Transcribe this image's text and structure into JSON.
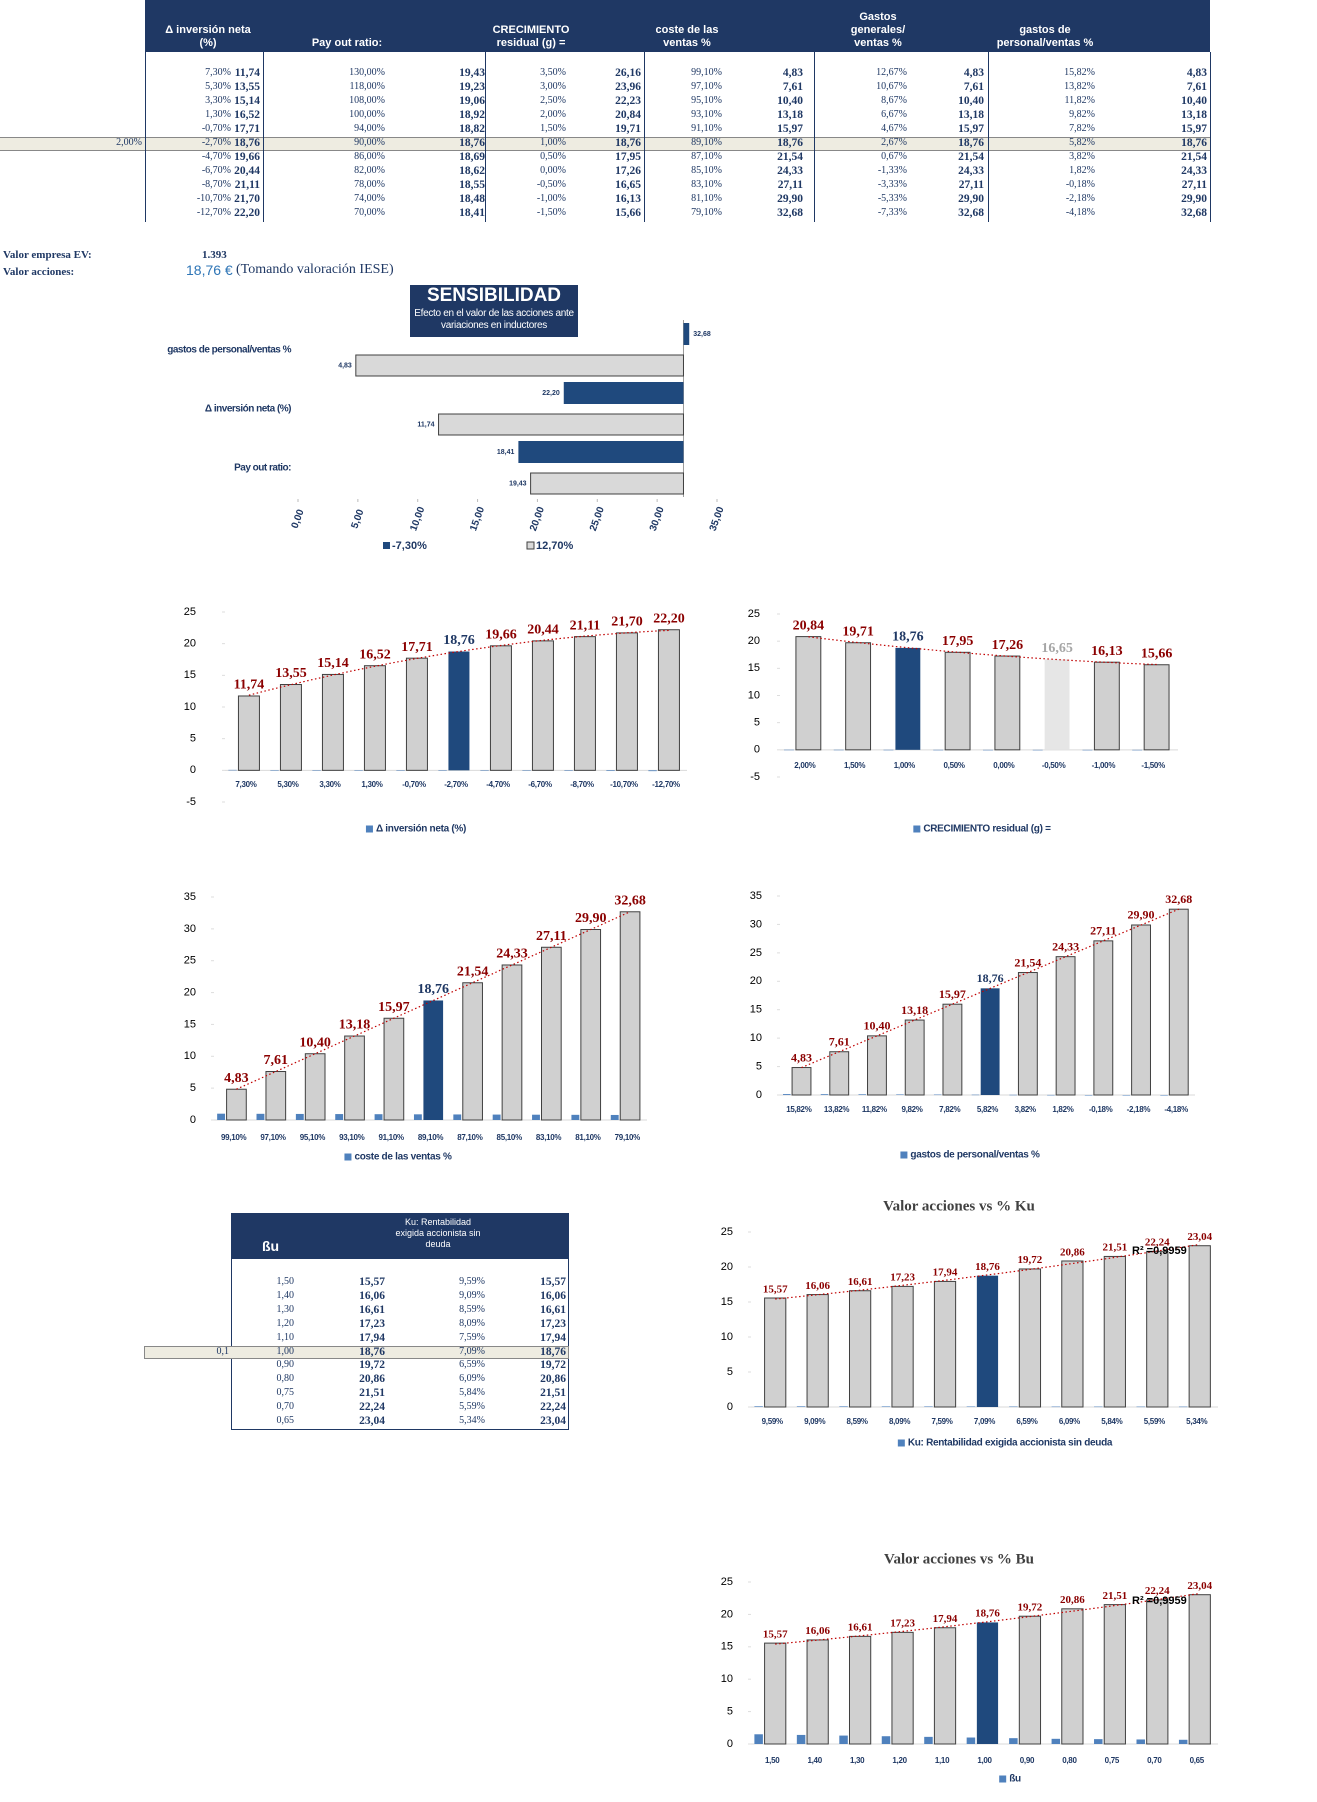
{
  "table": {
    "headers": [
      "Δ inversión neta (%)",
      "Pay out ratio:",
      "CRECIMIENTO residual (g) =",
      "coste de las ventas %",
      "Gastos generales/ ventas %",
      "gastos de personal/ventas %"
    ],
    "marker": "2,00%",
    "marker_row": 5,
    "rows": [
      [
        "7,30%",
        "11,74",
        "130,00%",
        "19,43",
        "3,50%",
        "26,16",
        "99,10%",
        "4,83",
        "12,67%",
        "4,83",
        "15,82%",
        "4,83"
      ],
      [
        "5,30%",
        "13,55",
        "118,00%",
        "19,23",
        "3,00%",
        "23,96",
        "97,10%",
        "7,61",
        "10,67%",
        "7,61",
        "13,82%",
        "7,61"
      ],
      [
        "3,30%",
        "15,14",
        "108,00%",
        "19,06",
        "2,50%",
        "22,23",
        "95,10%",
        "10,40",
        "8,67%",
        "10,40",
        "11,82%",
        "10,40"
      ],
      [
        "1,30%",
        "16,52",
        "100,00%",
        "18,92",
        "2,00%",
        "20,84",
        "93,10%",
        "13,18",
        "6,67%",
        "13,18",
        "9,82%",
        "13,18"
      ],
      [
        "-0,70%",
        "17,71",
        "94,00%",
        "18,82",
        "1,50%",
        "19,71",
        "91,10%",
        "15,97",
        "4,67%",
        "15,97",
        "7,82%",
        "15,97"
      ],
      [
        "-2,70%",
        "18,76",
        "90,00%",
        "18,76",
        "1,00%",
        "18,76",
        "89,10%",
        "18,76",
        "2,67%",
        "18,76",
        "5,82%",
        "18,76"
      ],
      [
        "-4,70%",
        "19,66",
        "86,00%",
        "18,69",
        "0,50%",
        "17,95",
        "87,10%",
        "21,54",
        "0,67%",
        "21,54",
        "3,82%",
        "21,54"
      ],
      [
        "-6,70%",
        "20,44",
        "82,00%",
        "18,62",
        "0,00%",
        "17,26",
        "85,10%",
        "24,33",
        "-1,33%",
        "24,33",
        "1,82%",
        "24,33"
      ],
      [
        "-8,70%",
        "21,11",
        "78,00%",
        "18,55",
        "-0,50%",
        "16,65",
        "83,10%",
        "27,11",
        "-3,33%",
        "27,11",
        "-0,18%",
        "27,11"
      ],
      [
        "-10,70%",
        "21,70",
        "74,00%",
        "18,48",
        "-1,00%",
        "16,13",
        "81,10%",
        "29,90",
        "-5,33%",
        "29,90",
        "-2,18%",
        "29,90"
      ],
      [
        "-12,70%",
        "22,20",
        "70,00%",
        "18,41",
        "-1,50%",
        "15,66",
        "79,10%",
        "32,68",
        "-7,33%",
        "32,68",
        "-4,18%",
        "32,68"
      ]
    ]
  },
  "valuation": {
    "ev_label": "Valor empresa EV:",
    "ev": "1.393",
    "share_label": "Valor acciones:",
    "share": "18,76 €",
    "note": "(Tomando valoración IESE)"
  },
  "beta_table": {
    "headers": [
      "ßu",
      "Ku: Rentabilidad exigida accionista sin deuda"
    ],
    "marker": "0,1",
    "marker_row": 5,
    "rows": [
      [
        "1,50",
        "15,57",
        "9,59%",
        "15,57"
      ],
      [
        "1,40",
        "16,06",
        "9,09%",
        "16,06"
      ],
      [
        "1,30",
        "16,61",
        "8,59%",
        "16,61"
      ],
      [
        "1,20",
        "17,23",
        "8,09%",
        "17,23"
      ],
      [
        "1,10",
        "17,94",
        "7,59%",
        "17,94"
      ],
      [
        "1,00",
        "18,76",
        "7,09%",
        "18,76"
      ],
      [
        "0,90",
        "19,72",
        "6,59%",
        "19,72"
      ],
      [
        "0,80",
        "20,86",
        "6,09%",
        "20,86"
      ],
      [
        "0,75",
        "21,51",
        "5,84%",
        "21,51"
      ],
      [
        "0,70",
        "22,24",
        "5,59%",
        "22,24"
      ],
      [
        "0,65",
        "23,04",
        "5,34%",
        "23,04"
      ]
    ]
  },
  "chart_data": [
    {
      "type": "tornado",
      "title": "SENSIBILIDAD",
      "subtitle": "Efecto en el valor de las acciones ante variaciones en inductores",
      "categories": [
        "gastos de personal/ventas %",
        "Δ inversión neta (%)",
        "Pay out ratio:"
      ],
      "series": [
        {
          "name": "-7,30%",
          "color": "#1f497d",
          "values": [
            32.68,
            22.2,
            18.41
          ],
          "value_labels": [
            "32,68",
            "22,20",
            "18,41"
          ]
        },
        {
          "name": "12,70%",
          "color": "#d9d9d9",
          "values": [
            4.83,
            11.74,
            19.43
          ],
          "value_labels": [
            "4,83",
            "11,74",
            "19,43"
          ]
        }
      ],
      "x_axis_crosses": 32.2,
      "xlim": [
        0,
        35
      ],
      "xticks": [
        {
          "value": 0,
          "label": "0,00"
        },
        {
          "value": 5,
          "label": "5,00"
        },
        {
          "value": 10,
          "label": "10,00"
        },
        {
          "value": 15,
          "label": "15,00"
        },
        {
          "value": 20,
          "label": "20,00"
        },
        {
          "value": 25,
          "label": "25,00"
        },
        {
          "value": 30,
          "label": "30,00"
        },
        {
          "value": 35,
          "label": "35,00"
        }
      ]
    },
    {
      "type": "bar",
      "categories": [
        "7,30%",
        "5,30%",
        "3,30%",
        "1,30%",
        "-0,70%",
        "-2,70%",
        "-4,70%",
        "-6,70%",
        "-8,70%",
        "-10,70%",
        "-12,70%"
      ],
      "ylim": [
        -5,
        25
      ],
      "yticks": [
        -5,
        0,
        5,
        10,
        15,
        20,
        25
      ],
      "trendline": "polynomial",
      "series": [
        {
          "name": "Δ inversión neta (%)",
          "color": "#4f81bd",
          "values": [
            0.073,
            0.053,
            0.033,
            0.013,
            -0.007,
            -0.027,
            -0.047,
            -0.067,
            -0.087,
            -0.107,
            -0.127
          ]
        },
        {
          "color": "#d0d0d0",
          "label_color": "#8b0000",
          "highlights": [
            {
              "index": 5,
              "color": "#1f497d",
              "label_color": "#1f3864"
            }
          ],
          "values": [
            11.74,
            13.55,
            15.14,
            16.52,
            17.71,
            18.76,
            19.66,
            20.44,
            21.11,
            21.7,
            22.2
          ],
          "value_labels": [
            "11,74",
            "13,55",
            "15,14",
            "16,52",
            "17,71",
            "18,76",
            "19,66",
            "20,44",
            "21,11",
            "21,70",
            "22,20"
          ]
        }
      ]
    },
    {
      "type": "bar",
      "categories": [
        "2,00%",
        "1,50%",
        "1,00%",
        "0,50%",
        "0,00%",
        "-0,50%",
        "-1,00%",
        "-1,50%"
      ],
      "ylim": [
        -5,
        25
      ],
      "yticks": [
        -5,
        0,
        5,
        10,
        15,
        20,
        25
      ],
      "trendline": "polynomial",
      "series": [
        {
          "name": "CRECIMIENTO residual (g) =",
          "color": "#4f81bd",
          "values": [
            0.02,
            0.015,
            0.01,
            0.005,
            0,
            -0.005,
            -0.01,
            -0.015
          ]
        },
        {
          "color": "#d0d0d0",
          "label_color": "#8b0000",
          "highlights": [
            {
              "index": 2,
              "color": "#1f497d",
              "label_color": "#1f3864"
            },
            {
              "index": 5,
              "color": "#e6e6e6",
              "label_color": "#a6a6a6"
            }
          ],
          "values": [
            20.84,
            19.71,
            18.76,
            17.95,
            17.26,
            16.65,
            16.13,
            15.66
          ],
          "value_labels": [
            "20,84",
            "19,71",
            "18,76",
            "17,95",
            "17,26",
            "16,65",
            "16,13",
            "15,66"
          ]
        }
      ]
    },
    {
      "type": "bar",
      "categories": [
        "99,10%",
        "97,10%",
        "95,10%",
        "93,10%",
        "91,10%",
        "89,10%",
        "87,10%",
        "85,10%",
        "83,10%",
        "81,10%",
        "79,10%"
      ],
      "ylim": [
        0,
        35
      ],
      "yticks": [
        0,
        5,
        10,
        15,
        20,
        25,
        30,
        35
      ],
      "trendline": "polynomial",
      "series": [
        {
          "name": "coste de las ventas %",
          "color": "#4f81bd",
          "values": [
            0.991,
            0.971,
            0.951,
            0.931,
            0.911,
            0.891,
            0.871,
            0.851,
            0.831,
            0.811,
            0.791
          ]
        },
        {
          "color": "#d0d0d0",
          "label_color": "#8b0000",
          "highlights": [
            {
              "index": 5,
              "color": "#1f497d",
              "label_color": "#1f3864"
            }
          ],
          "values": [
            4.83,
            7.61,
            10.4,
            13.18,
            15.97,
            18.76,
            21.54,
            24.33,
            27.11,
            29.9,
            32.68
          ],
          "value_labels": [
            "4,83",
            "7,61",
            "10,40",
            "13,18",
            "15,97",
            "18,76",
            "21,54",
            "24,33",
            "27,11",
            "29,90",
            "32,68"
          ]
        }
      ]
    },
    {
      "type": "bar",
      "categories": [
        "15,82%",
        "13,82%",
        "11,82%",
        "9,82%",
        "7,82%",
        "5,82%",
        "3,82%",
        "1,82%",
        "-0,18%",
        "-2,18%",
        "-4,18%"
      ],
      "ylim": [
        0,
        35
      ],
      "yticks": [
        0,
        5,
        10,
        15,
        20,
        25,
        30,
        35
      ],
      "trendline": "polynomial",
      "series": [
        {
          "name": "gastos de personal/ventas %",
          "color": "#4f81bd",
          "values": [
            0.1582,
            0.1382,
            0.1182,
            0.0982,
            0.0782,
            0.0582,
            0.0382,
            0.0182,
            -0.0018,
            -0.0218,
            -0.0418
          ]
        },
        {
          "color": "#d0d0d0",
          "label_color": "#8b0000",
          "highlights": [
            {
              "index": 5,
              "color": "#1f497d",
              "label_color": "#1f3864"
            }
          ],
          "values": [
            4.83,
            7.61,
            10.4,
            13.18,
            15.97,
            18.76,
            21.54,
            24.33,
            27.11,
            29.9,
            32.68
          ],
          "value_labels": [
            "4,83",
            "7,61",
            "10,40",
            "13,18",
            "15,97",
            "18,76",
            "21,54",
            "24,33",
            "27,11",
            "29,90",
            "32,68"
          ]
        }
      ]
    },
    {
      "type": "bar",
      "title": "Valor acciones vs % Ku",
      "annotation": "R² =0,9959",
      "categories": [
        "9,59%",
        "9,09%",
        "8,59%",
        "8,09%",
        "7,59%",
        "7,09%",
        "6,59%",
        "6,09%",
        "5,84%",
        "5,59%",
        "5,34%"
      ],
      "ylim": [
        0,
        25
      ],
      "yticks": [
        0,
        5,
        10,
        15,
        20,
        25
      ],
      "trendline": "polynomial",
      "series": [
        {
          "name": "Ku: Rentabilidad exigida accionista sin deuda",
          "color": "#4f81bd",
          "values": [
            0.0959,
            0.0909,
            0.0859,
            0.0809,
            0.0759,
            0.0709,
            0.0659,
            0.0609,
            0.0584,
            0.0559,
            0.0534
          ]
        },
        {
          "color": "#d0d0d0",
          "label_color": "#8b0000",
          "highlights": [
            {
              "index": 5,
              "color": "#1f497d",
              "label_color": "#8b0000"
            }
          ],
          "values": [
            15.57,
            16.06,
            16.61,
            17.23,
            17.94,
            18.76,
            19.72,
            20.86,
            21.51,
            22.24,
            23.04
          ],
          "value_labels": [
            "15,57",
            "16,06",
            "16,61",
            "17,23",
            "17,94",
            "18,76",
            "19,72",
            "20,86",
            "21,51",
            "22,24",
            "23,04"
          ]
        }
      ]
    },
    {
      "type": "bar",
      "title": "Valor acciones vs % Bu",
      "annotation": "R² =0,9959",
      "categories": [
        "1,50",
        "1,40",
        "1,30",
        "1,20",
        "1,10",
        "1,00",
        "0,90",
        "0,80",
        "0,75",
        "0,70",
        "0,65"
      ],
      "ylim": [
        0,
        25
      ],
      "yticks": [
        0,
        5,
        10,
        15,
        20,
        25
      ],
      "trendline": "polynomial",
      "series": [
        {
          "name": "ßu",
          "color": "#4f81bd",
          "values": [
            1.5,
            1.4,
            1.3,
            1.2,
            1.1,
            1.0,
            0.9,
            0.8,
            0.75,
            0.7,
            0.65
          ]
        },
        {
          "color": "#d0d0d0",
          "label_color": "#8b0000",
          "highlights": [
            {
              "index": 5,
              "color": "#1f497d",
              "label_color": "#8b0000"
            }
          ],
          "values": [
            15.57,
            16.06,
            16.61,
            17.23,
            17.94,
            18.76,
            19.72,
            20.86,
            21.51,
            22.24,
            23.04
          ],
          "value_labels": [
            "15,57",
            "16,06",
            "16,61",
            "17,23",
            "17,94",
            "18,76",
            "19,72",
            "20,86",
            "21,51",
            "22,24",
            "23,04"
          ]
        }
      ]
    }
  ]
}
